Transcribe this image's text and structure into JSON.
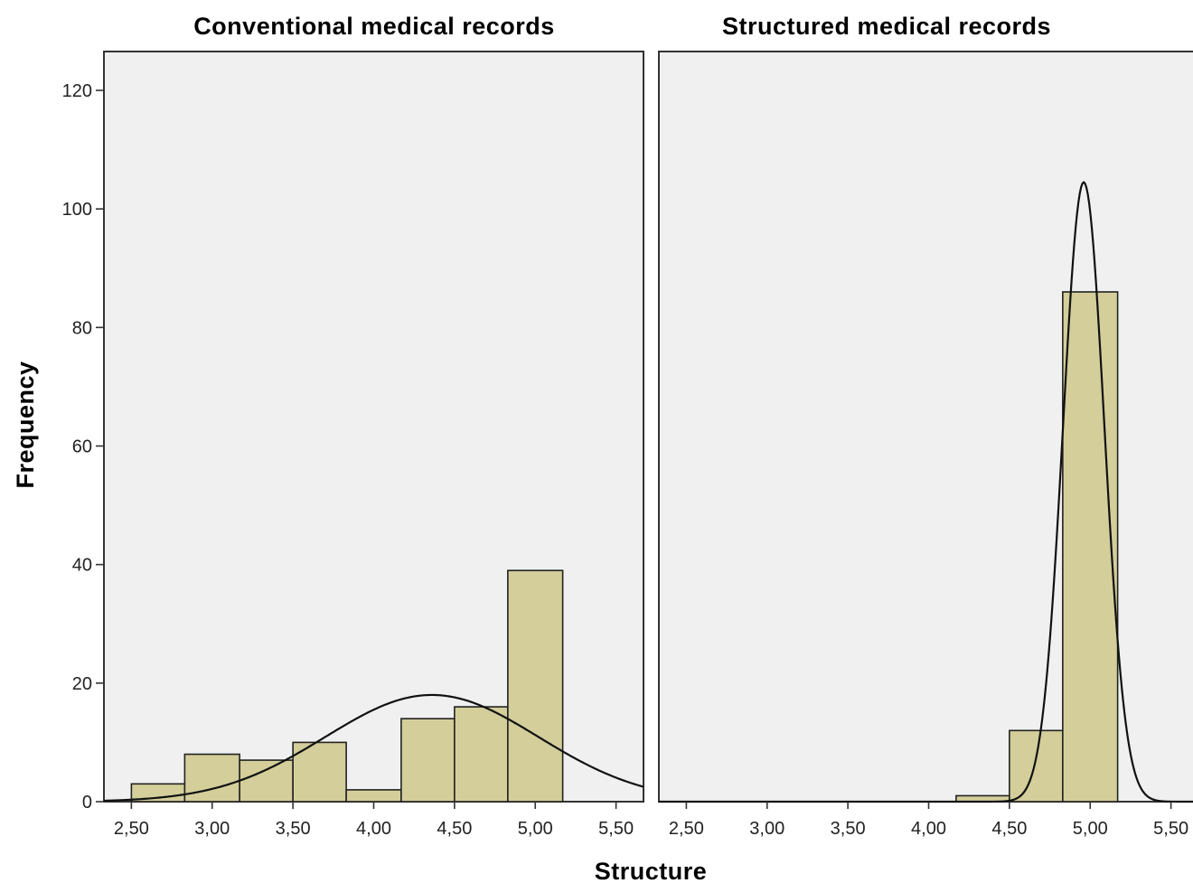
{
  "chart_data": {
    "type": "bar",
    "xlabel": "Structure",
    "ylabel": "Frequency",
    "ylim": [
      0,
      120
    ],
    "yticks": [
      0,
      20,
      40,
      60,
      80,
      100,
      120
    ],
    "xticks": [
      "2,50",
      "3,00",
      "3,50",
      "4,00",
      "4,50",
      "5,00",
      "5,50"
    ],
    "xtick_values": [
      2.5,
      3.0,
      3.5,
      4.0,
      4.5,
      5.0,
      5.5
    ],
    "xlim": [
      2.33,
      5.67
    ],
    "grid": false,
    "panels": [
      {
        "title": "Conventional medical records",
        "bars": [
          {
            "x0": 2.5,
            "x1": 2.83,
            "count": 3
          },
          {
            "x0": 2.83,
            "x1": 3.17,
            "count": 8
          },
          {
            "x0": 3.17,
            "x1": 3.5,
            "count": 7
          },
          {
            "x0": 3.5,
            "x1": 3.83,
            "count": 10
          },
          {
            "x0": 3.83,
            "x1": 4.17,
            "count": 2
          },
          {
            "x0": 4.17,
            "x1": 4.5,
            "count": 14
          },
          {
            "x0": 4.5,
            "x1": 4.83,
            "count": 16
          },
          {
            "x0": 4.83,
            "x1": 5.17,
            "count": 39
          }
        ],
        "normal_curve": {
          "mean": 4.36,
          "peak": 18,
          "sd": 0.66
        }
      },
      {
        "title": "Structured medical records",
        "bars": [
          {
            "x0": 4.17,
            "x1": 4.5,
            "count": 1
          },
          {
            "x0": 4.5,
            "x1": 4.83,
            "count": 12
          },
          {
            "x0": 4.83,
            "x1": 5.17,
            "count": 86
          }
        ],
        "normal_curve": {
          "mean": 4.96,
          "peak": 104.5,
          "sd": 0.128
        }
      }
    ]
  }
}
